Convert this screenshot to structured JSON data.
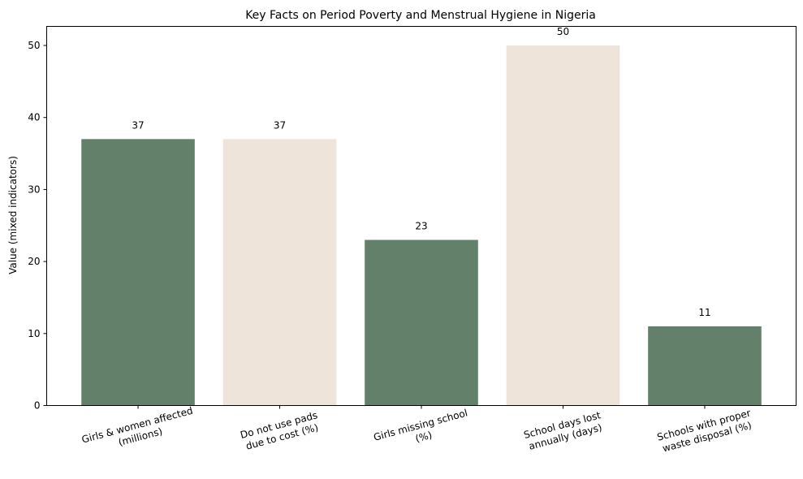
{
  "chart_data": {
    "type": "bar",
    "title": "Key Facts on Period Poverty and Menstrual Hygiene in Nigeria",
    "xlabel": "",
    "ylabel": "Value (mixed indicators)",
    "categories": [
      [
        "Girls & women affected",
        "(millions)"
      ],
      [
        "Do not use pads",
        "due to cost (%)"
      ],
      [
        "Girls missing school",
        "(%)"
      ],
      [
        "School days lost",
        "annually (days)"
      ],
      [
        "Schools with proper",
        "waste disposal (%)"
      ]
    ],
    "values": [
      37,
      37,
      23,
      50,
      11
    ],
    "data_labels": [
      "37",
      "37",
      "23",
      "50",
      "11"
    ],
    "bar_colors": [
      "#62806a",
      "#eee4da",
      "#62806a",
      "#eee4da",
      "#62806a"
    ],
    "ylim": [
      0,
      52.65
    ],
    "yticks": [
      0,
      10,
      20,
      30,
      40,
      50
    ],
    "ytick_labels": [
      "0",
      "10",
      "20",
      "30",
      "40",
      "50"
    ],
    "grid": false,
    "legend": "none"
  }
}
